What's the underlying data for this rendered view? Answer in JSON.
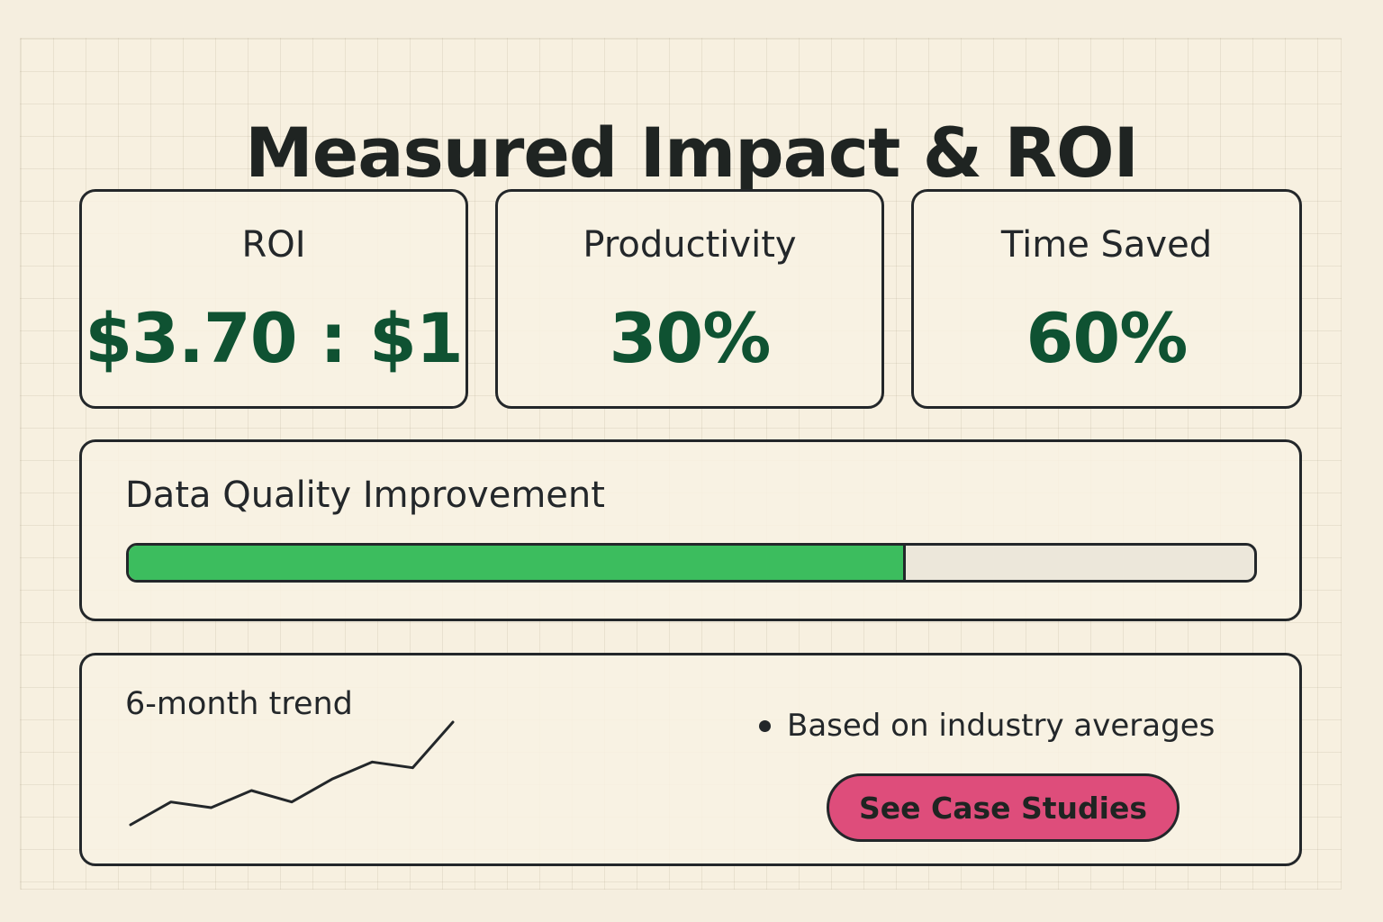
{
  "page": {
    "title": "Measured Impact & ROI"
  },
  "metrics": [
    {
      "label": "ROI",
      "value": "$3.70 : $1"
    },
    {
      "label": "Productivity",
      "value": "30%"
    },
    {
      "label": "Time Saved",
      "value": "60%"
    }
  ],
  "data_quality": {
    "label": "Data Quality Improvement",
    "progress": 0.69
  },
  "trend": {
    "label": "6-month trend",
    "points": [
      2,
      4,
      3.5,
      5,
      4,
      6,
      7.5,
      7,
      11
    ]
  },
  "notes": {
    "bullet": "Based on industry averages",
    "button_label": "See Case Studies"
  },
  "colors": {
    "background": "#f5eedf",
    "value_green": "#0f5232",
    "progress_green": "#3cbd5e",
    "button_pink": "#de4d7b",
    "border": "#23272a"
  }
}
